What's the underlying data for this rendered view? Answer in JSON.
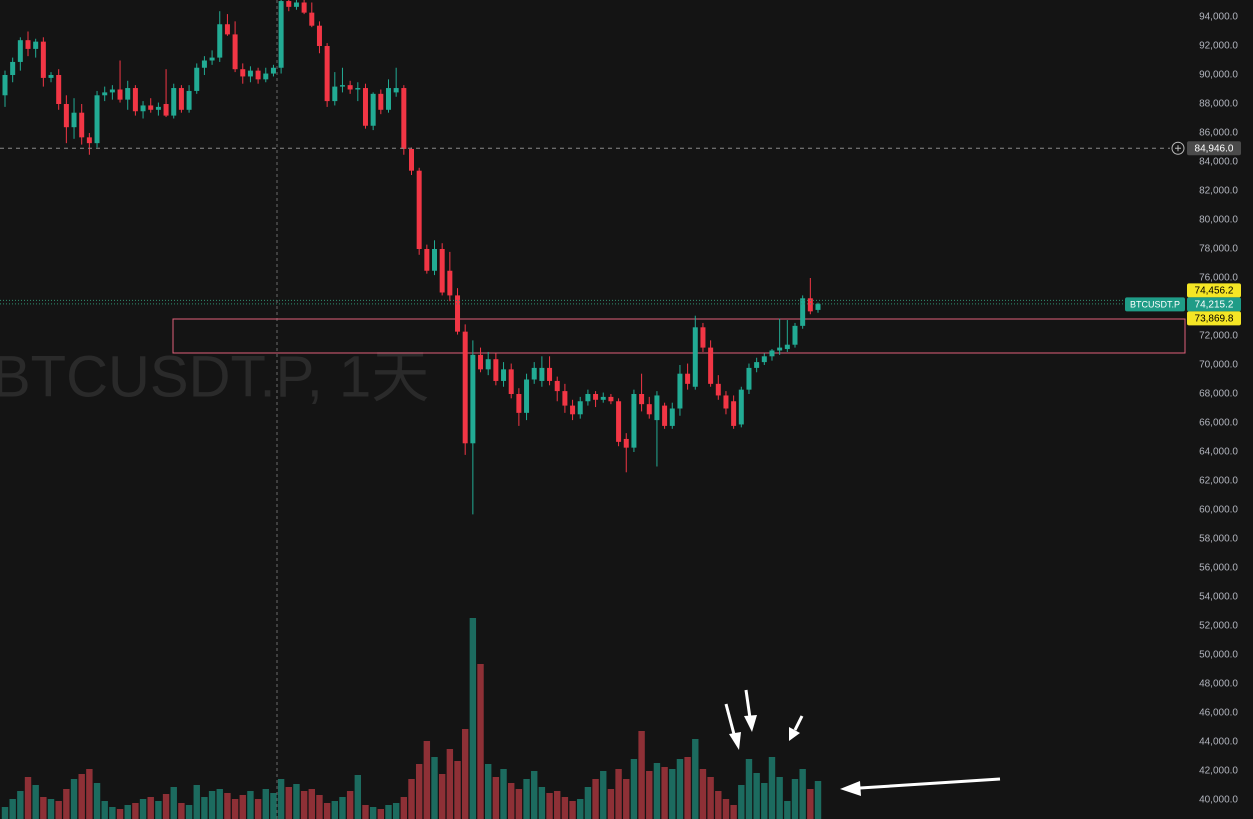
{
  "chart_data": {
    "type": "candlestick",
    "watermark": "BTCUSDT.P, 1天",
    "symbol": "BTCUSDT.P",
    "up_color": "#22ab94",
    "down_color": "#f23645",
    "volume_up_color": "#1c6b5f",
    "volume_down_color": "#8e3036",
    "grid": false,
    "ylim": [
      38690,
      95172
    ],
    "yticks": [
      {
        "value": 40000,
        "label": "40,000.0"
      },
      {
        "value": 42000,
        "label": "42,000.0"
      },
      {
        "value": 44000,
        "label": "44,000.0"
      },
      {
        "value": 46000,
        "label": "46,000.0"
      },
      {
        "value": 48000,
        "label": "48,000.0"
      },
      {
        "value": 50000,
        "label": "50,000.0"
      },
      {
        "value": 52000,
        "label": "52,000.0"
      },
      {
        "value": 54000,
        "label": "54,000.0"
      },
      {
        "value": 56000,
        "label": "56,000.0"
      },
      {
        "value": 58000,
        "label": "58,000.0"
      },
      {
        "value": 60000,
        "label": "60,000.0"
      },
      {
        "value": 62000,
        "label": "62,000.0"
      },
      {
        "value": 64000,
        "label": "64,000.0"
      },
      {
        "value": 66000,
        "label": "66,000.0"
      },
      {
        "value": 68000,
        "label": "68,000.0"
      },
      {
        "value": 70000,
        "label": "70,000.0"
      },
      {
        "value": 72000,
        "label": "72,000.0"
      },
      {
        "value": 74000,
        "label": "74,000.0"
      },
      {
        "value": 76000,
        "label": "76,000.0"
      },
      {
        "value": 78000,
        "label": "78,000.0"
      },
      {
        "value": 80000,
        "label": "80,000.0"
      },
      {
        "value": 82000,
        "label": "82,000.0"
      },
      {
        "value": 84000,
        "label": "84,000.0"
      },
      {
        "value": 86000,
        "label": "86,000.0"
      },
      {
        "value": 88000,
        "label": "88,000.0"
      },
      {
        "value": 90000,
        "label": "90,000.0"
      },
      {
        "value": 92000,
        "label": "92,000.0"
      },
      {
        "value": 94000,
        "label": "94,000.0"
      }
    ],
    "open": [
      88600,
      90000,
      90900,
      92400,
      91800,
      92300,
      89800,
      90000,
      88000,
      86400,
      87400,
      85700,
      85300,
      88600,
      88800,
      89000,
      88300,
      89100,
      87500,
      87900,
      87600,
      88000,
      87200,
      89100,
      87600,
      88900,
      90500,
      91000,
      91200,
      93500,
      92800,
      90400,
      89900,
      90300,
      89700,
      90100,
      90500,
      95100,
      94700,
      95000,
      94300,
      93400,
      92000,
      88200,
      89200,
      89300,
      89000,
      89100,
      86500,
      88700,
      87600,
      88800,
      89100,
      84900,
      83400,
      78000,
      76500,
      78000,
      76500,
      74800,
      72300,
      64600,
      70700,
      69700,
      70400,
      68900,
      69700,
      68000,
      66700,
      69000,
      68900,
      69800,
      68900,
      68200,
      67200,
      66600,
      67500,
      68000,
      67600,
      67800,
      67500,
      64900,
      64300,
      68000,
      67300,
      66200,
      67200,
      65800,
      67000,
      69400,
      68500,
      72600,
      71200,
      68700,
      67900,
      67500,
      65900,
      68300,
      69800,
      70200,
      70600,
      71000,
      71100,
      71400,
      72700,
      74600,
      73800
    ],
    "high": [
      90300,
      91200,
      92600,
      93000,
      92500,
      92600,
      90200,
      90400,
      88600,
      88400,
      88000,
      86000,
      88900,
      89200,
      89300,
      91000,
      89600,
      89300,
      88200,
      88400,
      88100,
      90400,
      89400,
      89300,
      89300,
      90800,
      91300,
      91700,
      94400,
      94200,
      93700,
      90800,
      90600,
      90500,
      90500,
      90700,
      95300,
      95300,
      95200,
      95300,
      95000,
      93700,
      92200,
      90200,
      90500,
      89600,
      89500,
      89400,
      88800,
      89000,
      89700,
      90500,
      89300,
      85000,
      83600,
      78300,
      78600,
      78400,
      77800,
      75300,
      72800,
      71700,
      71200,
      70900,
      70800,
      70200,
      70100,
      68400,
      69400,
      70200,
      70600,
      70600,
      69200,
      68700,
      67600,
      67800,
      68300,
      68200,
      68100,
      68000,
      67700,
      65300,
      68300,
      69400,
      67800,
      68200,
      67400,
      67400,
      70000,
      70100,
      73400,
      72900,
      71700,
      69300,
      68200,
      67900,
      68500,
      70100,
      70500,
      70800,
      71100,
      73200,
      73100,
      72900,
      74800,
      76000,
      74300
    ],
    "low": [
      87800,
      89500,
      90300,
      91300,
      91200,
      89200,
      89500,
      87600,
      85300,
      85600,
      85200,
      84500,
      85000,
      88200,
      88300,
      88100,
      87600,
      87200,
      87000,
      87400,
      87200,
      87100,
      87000,
      87400,
      87400,
      88700,
      90000,
      90700,
      90900,
      92700,
      90200,
      89400,
      89500,
      89400,
      89500,
      89900,
      90100,
      94400,
      94500,
      94200,
      93300,
      91500,
      87800,
      87900,
      88800,
      88700,
      88200,
      86300,
      86200,
      87300,
      87400,
      88500,
      84500,
      83100,
      77600,
      76300,
      76200,
      74800,
      74400,
      72100,
      63800,
      59700,
      69500,
      69300,
      68600,
      68500,
      67700,
      65800,
      66200,
      68700,
      68500,
      68600,
      67500,
      66700,
      66200,
      66300,
      67200,
      67100,
      67400,
      67300,
      64400,
      62600,
      64000,
      66800,
      66300,
      63000,
      65600,
      65600,
      66500,
      68300,
      68300,
      70900,
      68500,
      67600,
      66600,
      65600,
      65700,
      68000,
      69500,
      70000,
      70300,
      70700,
      70900,
      71200,
      72500,
      73500,
      73600
    ],
    "close": [
      90000,
      90900,
      92400,
      91800,
      92300,
      89800,
      90000,
      88000,
      86400,
      87400,
      85700,
      85300,
      88600,
      88800,
      89000,
      88300,
      89100,
      87500,
      87900,
      87600,
      87800,
      87200,
      89100,
      87600,
      88900,
      90500,
      91000,
      91200,
      93500,
      92800,
      90400,
      89900,
      90300,
      89700,
      90100,
      90500,
      95100,
      94700,
      95000,
      94300,
      93400,
      92000,
      88200,
      89200,
      89300,
      89000,
      89100,
      86500,
      88700,
      87600,
      89100,
      89100,
      84900,
      83400,
      78000,
      76500,
      78000,
      75000,
      74800,
      72300,
      64600,
      70700,
      69700,
      70400,
      68900,
      69700,
      68000,
      66700,
      69000,
      69800,
      69800,
      68900,
      68200,
      67200,
      66600,
      67500,
      68000,
      67600,
      67800,
      67500,
      64700,
      64300,
      68000,
      67300,
      66600,
      67900,
      65800,
      67000,
      69400,
      68700,
      72600,
      71200,
      68700,
      67900,
      67000,
      65800,
      68300,
      69800,
      70200,
      70600,
      71000,
      71200,
      71400,
      72700,
      74600,
      73700,
      74215.2
    ],
    "volume": {
      "ylim": [
        0,
        210
      ],
      "values": [
        12,
        20,
        28,
        42,
        34,
        22,
        20,
        18,
        30,
        40,
        45,
        50,
        36,
        18,
        12,
        10,
        14,
        16,
        20,
        22,
        18,
        25,
        32,
        16,
        14,
        34,
        22,
        28,
        30,
        26,
        20,
        24,
        28,
        20,
        30,
        26,
        40,
        32,
        35,
        28,
        30,
        24,
        16,
        18,
        22,
        28,
        44,
        14,
        12,
        10,
        14,
        16,
        22,
        40,
        55,
        78,
        62,
        45,
        70,
        58,
        90,
        201,
        155,
        55,
        42,
        50,
        36,
        30,
        40,
        48,
        32,
        26,
        28,
        22,
        18,
        20,
        32,
        40,
        48,
        30,
        50,
        40,
        60,
        88,
        48,
        56,
        52,
        50,
        60,
        62,
        80,
        50,
        42,
        28,
        20,
        14,
        34,
        60,
        46,
        36,
        62,
        42,
        18,
        40,
        50,
        30,
        38
      ]
    },
    "price_lines": [
      {
        "value": 84946.0,
        "label": "84,946.0",
        "color": "#4a4a4a",
        "text_color": "#ffffff",
        "style": "dashed"
      },
      {
        "value": 74456.2,
        "label": "74,456.2",
        "color": "#f5e625",
        "text_color": "#000000",
        "style": "dotted"
      },
      {
        "value": 74215.2,
        "label": "74,215.2",
        "color": "#1f9c87",
        "text_color": "#ffffff",
        "style": "dotted"
      },
      {
        "value": 73869.8,
        "label": "73,869.8",
        "color": "#f5e625",
        "text_color": "#000000",
        "style": "none"
      }
    ],
    "zone": {
      "top": 73172,
      "bottom": 70828,
      "color": "#e0607a"
    }
  }
}
